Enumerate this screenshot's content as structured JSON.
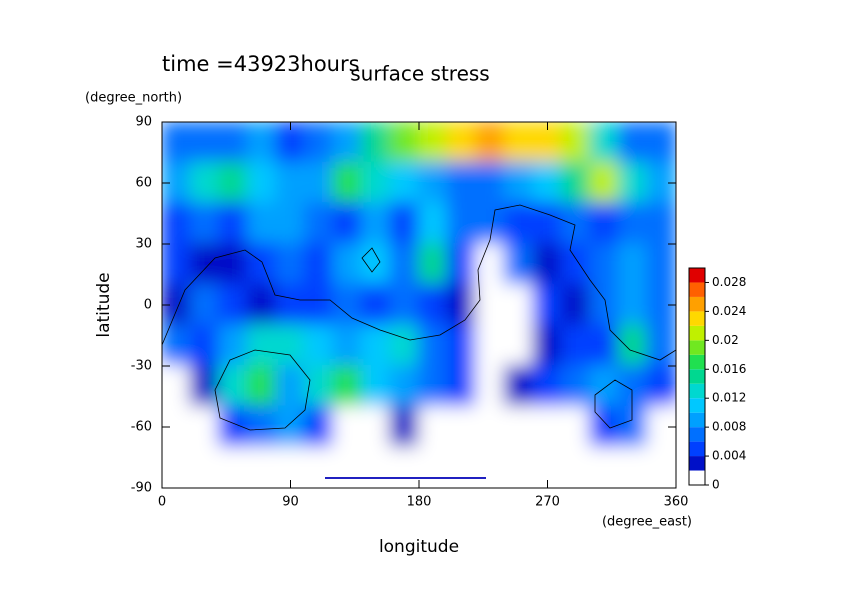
{
  "chart_data": {
    "type": "contour",
    "title": "surface stress",
    "subtitle": "time =43923hours",
    "x_label": "longitude",
    "x_units": "(degree_east)",
    "y_label": "latitude",
    "y_units": "(degree_north)",
    "xlim": [
      0,
      360
    ],
    "xticks": [
      0,
      90,
      180,
      270,
      360
    ],
    "ylim": [
      -90,
      90
    ],
    "yticks": [
      -90,
      -60,
      -30,
      0,
      30,
      60,
      90
    ],
    "lon": [
      10,
      30,
      50,
      70,
      90,
      110,
      130,
      150,
      170,
      190,
      210,
      230,
      250,
      270,
      290,
      310,
      330,
      350
    ],
    "lat": [
      80,
      60,
      40,
      20,
      0,
      -20,
      -40,
      -60,
      -80
    ],
    "z": [
      [
        0.006,
        0.007,
        0.006,
        0.008,
        0.004,
        0.006,
        0.008,
        0.014,
        0.018,
        0.02,
        0.022,
        0.024,
        0.022,
        0.022,
        0.02,
        0.012,
        0.006,
        0.006
      ],
      [
        0.008,
        0.012,
        0.014,
        0.01,
        0.008,
        0.008,
        0.016,
        0.012,
        0.01,
        0.008,
        0.006,
        0.006,
        0.008,
        0.01,
        0.014,
        0.02,
        0.012,
        0.008
      ],
      [
        0.004,
        0.006,
        0.004,
        0.008,
        0.008,
        0.006,
        0.004,
        0.008,
        0.004,
        0.01,
        0.006,
        0.006,
        0.004,
        0.004,
        0.006,
        0.004,
        0.006,
        0.006
      ],
      [
        0.004,
        0.003,
        0.002,
        0.004,
        0.006,
        0.004,
        0.008,
        0.01,
        0.006,
        0.014,
        0.004,
        0,
        0.006,
        0.002,
        0.004,
        0.006,
        0.008,
        0.006
      ],
      [
        0.003,
        0.006,
        0.004,
        0.002,
        0.004,
        0.004,
        0.006,
        0.004,
        0.006,
        0.004,
        0.002,
        0,
        0,
        0.004,
        0.002,
        0.006,
        0.008,
        0.006
      ],
      [
        0.006,
        0.004,
        0.008,
        0.012,
        0.012,
        0.01,
        0.008,
        0.01,
        0.012,
        0.006,
        0.004,
        0,
        0,
        0.002,
        0.004,
        0.004,
        0.014,
        0.006
      ],
      [
        0,
        0.002,
        0.012,
        0.016,
        0.008,
        0.012,
        0.016,
        0.01,
        0.008,
        0.006,
        0.004,
        0,
        0.002,
        0.004,
        0.006,
        0.008,
        0.006,
        0.004
      ],
      [
        0,
        0,
        0.004,
        0.006,
        0.008,
        0.004,
        0,
        0,
        0.002,
        0,
        0,
        0,
        0,
        0,
        0,
        0.004,
        0.006,
        0
      ],
      [
        0,
        0,
        0,
        0,
        0,
        0,
        0,
        0,
        0,
        0,
        0,
        0,
        0,
        0,
        0,
        0,
        0,
        0
      ]
    ],
    "levels": [
      0,
      0.002,
      0.004,
      0.006,
      0.008,
      0.01,
      0.012,
      0.014,
      0.016,
      0.018,
      0.02,
      0.022,
      0.024,
      0.026,
      0.028,
      0.03
    ],
    "colors": [
      "#ffffff",
      "#0010c8",
      "#0040ff",
      "#0070ff",
      "#00a0ff",
      "#00c8ff",
      "#00d8d0",
      "#00d890",
      "#20e050",
      "#70e820",
      "#c0f000",
      "#ffd800",
      "#ffa000",
      "#ff6000",
      "#e00000"
    ],
    "colorbar_ticks": [
      0,
      0.004,
      0.008,
      0.012,
      0.016,
      0.02,
      0.024,
      0.028
    ]
  }
}
